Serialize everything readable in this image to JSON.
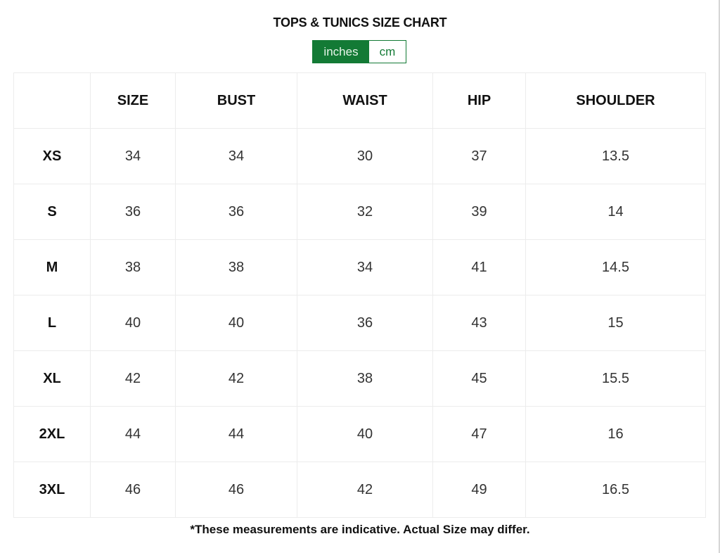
{
  "title": "TOPS & TUNICS SIZE CHART",
  "unit_toggle": {
    "options": [
      "inches",
      "cm"
    ],
    "selected": "inches",
    "accent_color": "#137a35"
  },
  "table": {
    "headers": [
      "",
      "SIZE",
      "BUST",
      "WAIST",
      "HIP",
      "SHOULDER"
    ],
    "rows": [
      [
        "XS",
        "34",
        "34",
        "30",
        "37",
        "13.5"
      ],
      [
        "S",
        "36",
        "36",
        "32",
        "39",
        "14"
      ],
      [
        "M",
        "38",
        "38",
        "34",
        "41",
        "14.5"
      ],
      [
        "L",
        "40",
        "40",
        "36",
        "43",
        "15"
      ],
      [
        "XL",
        "42",
        "42",
        "38",
        "45",
        "15.5"
      ],
      [
        "2XL",
        "44",
        "44",
        "40",
        "47",
        "16"
      ],
      [
        "3XL",
        "46",
        "46",
        "42",
        "49",
        "16.5"
      ]
    ]
  },
  "footnote": "*These measurements are indicative. Actual Size may differ."
}
